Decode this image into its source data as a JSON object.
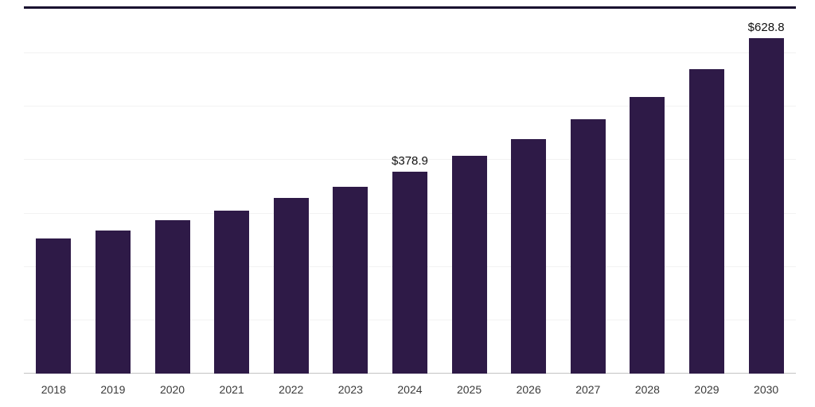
{
  "chart_data": {
    "type": "bar",
    "title": "",
    "xlabel": "",
    "ylabel": "",
    "categories": [
      "2018",
      "2019",
      "2020",
      "2021",
      "2022",
      "2023",
      "2024",
      "2025",
      "2026",
      "2027",
      "2028",
      "2029",
      "2030"
    ],
    "values": [
      253,
      268,
      287,
      306,
      329,
      350,
      378.9,
      408,
      440,
      476,
      518,
      570,
      628.8
    ],
    "data_labels": {
      "2024": "$378.9",
      "2030": "$628.8"
    },
    "ylim": [
      0,
      700
    ],
    "grid_step": 100,
    "grid": "horizontal",
    "legend": "none"
  },
  "colors": {
    "bar": "#2e1a47",
    "gridline": "#f2f2f2",
    "baseline": "#c4c4c4",
    "top_border": "#19102f",
    "axis_text": "#3a3a3a",
    "label_text": "#111111"
  }
}
